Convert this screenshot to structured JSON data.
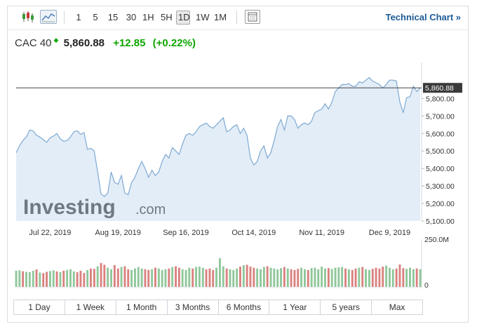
{
  "toolbar": {
    "candle_icon": "candlestick-icon",
    "area_icon": "area-chart-icon",
    "intervals": [
      "1",
      "5",
      "15",
      "30",
      "1H",
      "5H",
      "1D",
      "1W",
      "1M"
    ],
    "active_interval": "1D",
    "layout_icon": "chart-layout-icon",
    "technical_chart_label": "Technical Chart »"
  },
  "quote": {
    "name": "CAC 40",
    "arrow": "◆",
    "price": "5,860.88",
    "change": "+12.85",
    "change_pct": "(+0.22%)",
    "up_color": "#0ea600"
  },
  "watermark": {
    "brand": "Investing",
    "suffix": ".com"
  },
  "ranges": [
    "1 Day",
    "1 Week",
    "1 Month",
    "3 Months",
    "6 Months",
    "1 Year",
    "5 years",
    "Max"
  ],
  "chart_data": {
    "type": "area",
    "ylim": [
      5100,
      5950
    ],
    "y_ticks": [
      5100,
      5200,
      5300,
      5400,
      5500,
      5600,
      5700,
      5800
    ],
    "y_tick_labels": [
      "5,100.00",
      "5,200.00",
      "5,300.00",
      "5,400.00",
      "5,500.00",
      "5,600.00",
      "5,700.00",
      "5,800.00"
    ],
    "x_tick_labels": [
      "Jul 22, 2019",
      "Aug 19, 2019",
      "Sep 16, 2019",
      "Oct 14, 2019",
      "Nov 11, 2019",
      "Dec 9, 2019"
    ],
    "x_tick_index": [
      10,
      30,
      50,
      70,
      90,
      110
    ],
    "last_value": 5860.88,
    "last_value_label": "5,860.88",
    "series": [
      {
        "values": [
          5490,
          5530,
          5560,
          5580,
          5620,
          5615,
          5590,
          5580,
          5565,
          5550,
          5575,
          5585,
          5600,
          5570,
          5555,
          5560,
          5580,
          5610,
          5615,
          5595,
          5605,
          5510,
          5515,
          5500,
          5380,
          5255,
          5240,
          5260,
          5380,
          5320,
          5310,
          5360,
          5260,
          5250,
          5320,
          5350,
          5400,
          5440,
          5400,
          5350,
          5390,
          5360,
          5380,
          5440,
          5480,
          5460,
          5520,
          5500,
          5480,
          5540,
          5590,
          5600,
          5590,
          5610,
          5640,
          5650,
          5660,
          5640,
          5630,
          5650,
          5670,
          5690,
          5610,
          5620,
          5640,
          5650,
          5600,
          5630,
          5590,
          5460,
          5420,
          5440,
          5500,
          5530,
          5460,
          5490,
          5560,
          5640,
          5680,
          5620,
          5700,
          5700,
          5680,
          5630,
          5650,
          5660,
          5650,
          5670,
          5720,
          5730,
          5740,
          5770,
          5740,
          5780,
          5840,
          5860,
          5880,
          5880,
          5885,
          5870,
          5870,
          5895,
          5890,
          5905,
          5920,
          5900,
          5890,
          5880,
          5860,
          5880,
          5905,
          5905,
          5900,
          5780,
          5720,
          5805,
          5810,
          5870,
          5840,
          5860
        ],
        "volume": [
          88,
          90,
          85,
          82,
          80,
          88,
          95,
          78,
          75,
          82,
          86,
          90,
          84,
          80,
          88,
          92,
          96,
          84,
          80,
          88,
          76,
          92,
          100,
          98,
          112,
          130,
          120,
          104,
          96,
          118,
          100,
          108,
          112,
          96,
          92,
          100,
          108,
          100,
          96,
          92,
          96,
          104,
          100,
          92,
          96,
          100,
          108,
          112,
          104,
          96,
          92,
          104,
          100,
          108,
          110,
          104,
          96,
          100,
          92,
          104,
          156,
          112,
          100,
          96,
          92,
          100,
          110,
          118,
          120,
          110,
          104,
          100,
          96,
          108,
          112,
          104,
          100,
          96,
          102,
          108,
          100,
          96,
          92,
          98,
          104,
          96,
          92,
          102,
          104,
          96,
          110,
          100,
          102,
          98,
          104,
          106,
          108,
          100,
          96,
          92,
          100,
          104,
          108,
          96,
          92,
          98,
          104,
          100,
          110,
          116,
          104,
          96,
          100,
          122,
          102,
          98,
          104,
          96,
          100,
          96
        ],
        "volume_dir": [
          "u",
          "u",
          "d",
          "u",
          "u",
          "u",
          "d",
          "u",
          "d",
          "d",
          "u",
          "u",
          "d",
          "u",
          "d",
          "u",
          "u",
          "u",
          "d",
          "d",
          "d",
          "u",
          "d",
          "d",
          "u",
          "d",
          "d",
          "u",
          "u",
          "d",
          "d",
          "u",
          "d",
          "d",
          "u",
          "u",
          "u",
          "u",
          "d",
          "d",
          "u",
          "d",
          "u",
          "u",
          "u",
          "d",
          "u",
          "d",
          "d",
          "u",
          "u",
          "u",
          "d",
          "u",
          "u",
          "u",
          "d",
          "d",
          "d",
          "u",
          "u",
          "u",
          "d",
          "u",
          "u",
          "u",
          "d",
          "u",
          "d",
          "d",
          "d",
          "u",
          "u",
          "u",
          "d",
          "u",
          "u",
          "u",
          "u",
          "d",
          "u",
          "d",
          "d",
          "d",
          "u",
          "u",
          "d",
          "u",
          "u",
          "u",
          "u",
          "u",
          "d",
          "u",
          "u",
          "u",
          "u",
          "d",
          "u",
          "d",
          "d",
          "u",
          "d",
          "u",
          "u",
          "d",
          "d",
          "d",
          "d",
          "u",
          "u",
          "u",
          "d",
          "d",
          "d",
          "u",
          "u",
          "u",
          "d",
          "u"
        ]
      }
    ],
    "volume_ylim": [
      0,
      250000000
    ],
    "volume_tick_labels": [
      "250.0M",
      "0"
    ]
  }
}
